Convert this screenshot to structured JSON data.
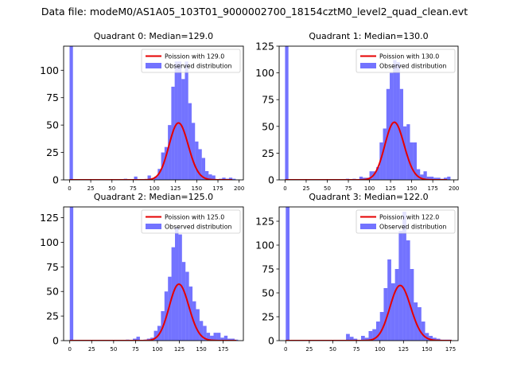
{
  "figure": {
    "suptitle": "Data file: modeM0/AS1A05_103T01_9000002700_18154cztM0_level2_quad_clean.evt"
  },
  "colors": {
    "hist": "#0000ff",
    "hist_alpha": 0.55,
    "curve": "#e60000"
  },
  "chart_data": [
    {
      "type": "bar",
      "title": "Quadrant 0: Median=129.0",
      "median": 129.0,
      "legend": [
        "Poission with 129.0",
        "Observed distribution"
      ],
      "legend_loc": "upper right",
      "xlim": [
        -7,
        205
      ],
      "ylim": [
        0,
        122
      ],
      "xticks": [
        0,
        25,
        50,
        75,
        100,
        125,
        150,
        175,
        200
      ],
      "yticks": [
        0,
        25,
        50,
        75,
        100
      ],
      "bin_width": 4,
      "bins": [
        [
          0,
          122
        ],
        [
          64,
          1
        ],
        [
          76,
          3
        ],
        [
          92,
          4
        ],
        [
          100,
          3
        ],
        [
          104,
          10
        ],
        [
          108,
          25
        ],
        [
          112,
          30
        ],
        [
          116,
          50
        ],
        [
          120,
          85
        ],
        [
          124,
          108
        ],
        [
          128,
          108
        ],
        [
          132,
          92
        ],
        [
          136,
          108
        ],
        [
          140,
          70
        ],
        [
          144,
          52
        ],
        [
          148,
          35
        ],
        [
          152,
          28
        ],
        [
          156,
          20
        ],
        [
          160,
          8
        ],
        [
          164,
          5
        ],
        [
          168,
          4
        ],
        [
          176,
          1
        ],
        [
          180,
          2
        ],
        [
          184,
          1
        ],
        [
          188,
          2
        ],
        [
          192,
          1
        ]
      ],
      "poisson": {
        "mean": 129.0,
        "count": 1480,
        "range": [
          0,
          192
        ]
      }
    },
    {
      "type": "bar",
      "title": "Quadrant 1: Median=130.0",
      "median": 130.0,
      "legend": [
        "Poission with 130.0",
        "Observed distribution"
      ],
      "legend_loc": "upper right",
      "xlim": [
        -7,
        205
      ],
      "ylim": [
        0,
        125
      ],
      "xticks": [
        0,
        25,
        50,
        75,
        100,
        125,
        150,
        175,
        200
      ],
      "yticks": [
        0,
        25,
        50,
        75,
        100,
        125
      ],
      "bin_width": 4,
      "bins": [
        [
          0,
          125
        ],
        [
          72,
          1
        ],
        [
          80,
          1
        ],
        [
          88,
          3
        ],
        [
          92,
          2
        ],
        [
          96,
          2
        ],
        [
          100,
          8
        ],
        [
          104,
          8
        ],
        [
          108,
          12
        ],
        [
          112,
          35
        ],
        [
          116,
          48
        ],
        [
          120,
          85
        ],
        [
          124,
          100
        ],
        [
          128,
          112
        ],
        [
          132,
          110
        ],
        [
          136,
          85
        ],
        [
          140,
          50
        ],
        [
          144,
          52
        ],
        [
          148,
          35
        ],
        [
          152,
          35
        ],
        [
          156,
          10
        ],
        [
          160,
          5
        ],
        [
          164,
          8
        ],
        [
          168,
          3
        ],
        [
          172,
          3
        ],
        [
          176,
          2
        ],
        [
          180,
          2
        ],
        [
          184,
          1
        ],
        [
          188,
          2
        ],
        [
          192,
          3
        ]
      ],
      "poisson": {
        "mean": 130.0,
        "count": 1540,
        "range": [
          0,
          192
        ]
      }
    },
    {
      "type": "bar",
      "title": "Quadrant 2: Median=125.0",
      "median": 125.0,
      "legend": [
        "Poission with 125.0",
        "Observed distribution"
      ],
      "legend_loc": "upper right",
      "xlim": [
        -7,
        198
      ],
      "ylim": [
        0,
        136
      ],
      "xticks": [
        0,
        25,
        50,
        75,
        100,
        125,
        150,
        175
      ],
      "yticks": [
        0,
        25,
        50,
        75,
        100,
        125
      ],
      "bin_width": 4,
      "bins": [
        [
          0,
          136
        ],
        [
          64,
          1
        ],
        [
          72,
          2
        ],
        [
          76,
          4
        ],
        [
          84,
          1
        ],
        [
          88,
          2
        ],
        [
          92,
          3
        ],
        [
          96,
          10
        ],
        [
          100,
          15
        ],
        [
          104,
          30
        ],
        [
          108,
          50
        ],
        [
          112,
          65
        ],
        [
          116,
          95
        ],
        [
          120,
          115
        ],
        [
          124,
          108
        ],
        [
          128,
          80
        ],
        [
          132,
          70
        ],
        [
          136,
          55
        ],
        [
          140,
          40
        ],
        [
          144,
          32
        ],
        [
          148,
          20
        ],
        [
          152,
          15
        ],
        [
          156,
          8
        ],
        [
          160,
          5
        ],
        [
          164,
          8
        ],
        [
          168,
          8
        ],
        [
          172,
          3
        ],
        [
          176,
          5
        ],
        [
          180,
          2
        ],
        [
          184,
          2
        ],
        [
          188,
          1
        ]
      ],
      "poisson": {
        "mean": 125.0,
        "count": 1610,
        "range": [
          0,
          190
        ]
      }
    },
    {
      "type": "bar",
      "title": "Quadrant 3: Median=122.0",
      "median": 122.0,
      "legend": [
        "Poission with 122.0",
        "Observed distribution"
      ],
      "legend_loc": "upper right",
      "xlim": [
        -7,
        183
      ],
      "ylim": [
        0,
        140
      ],
      "xticks": [
        0,
        25,
        50,
        75,
        100,
        125,
        150,
        175
      ],
      "yticks": [
        0,
        25,
        50,
        75,
        100,
        125
      ],
      "bin_width": 4,
      "bins": [
        [
          0,
          140
        ],
        [
          64,
          7
        ],
        [
          68,
          4
        ],
        [
          72,
          2
        ],
        [
          80,
          5
        ],
        [
          84,
          3
        ],
        [
          88,
          10
        ],
        [
          92,
          12
        ],
        [
          96,
          20
        ],
        [
          100,
          30
        ],
        [
          104,
          55
        ],
        [
          108,
          85
        ],
        [
          112,
          60
        ],
        [
          116,
          75
        ],
        [
          120,
          115
        ],
        [
          124,
          135
        ],
        [
          128,
          105
        ],
        [
          132,
          75
        ],
        [
          136,
          40
        ],
        [
          140,
          35
        ],
        [
          144,
          20
        ],
        [
          148,
          8
        ],
        [
          152,
          5
        ],
        [
          156,
          3
        ],
        [
          160,
          2
        ],
        [
          164,
          1
        ],
        [
          168,
          1
        ],
        [
          172,
          1
        ]
      ],
      "poisson": {
        "mean": 122.0,
        "count": 1600,
        "range": [
          0,
          176
        ]
      }
    }
  ]
}
